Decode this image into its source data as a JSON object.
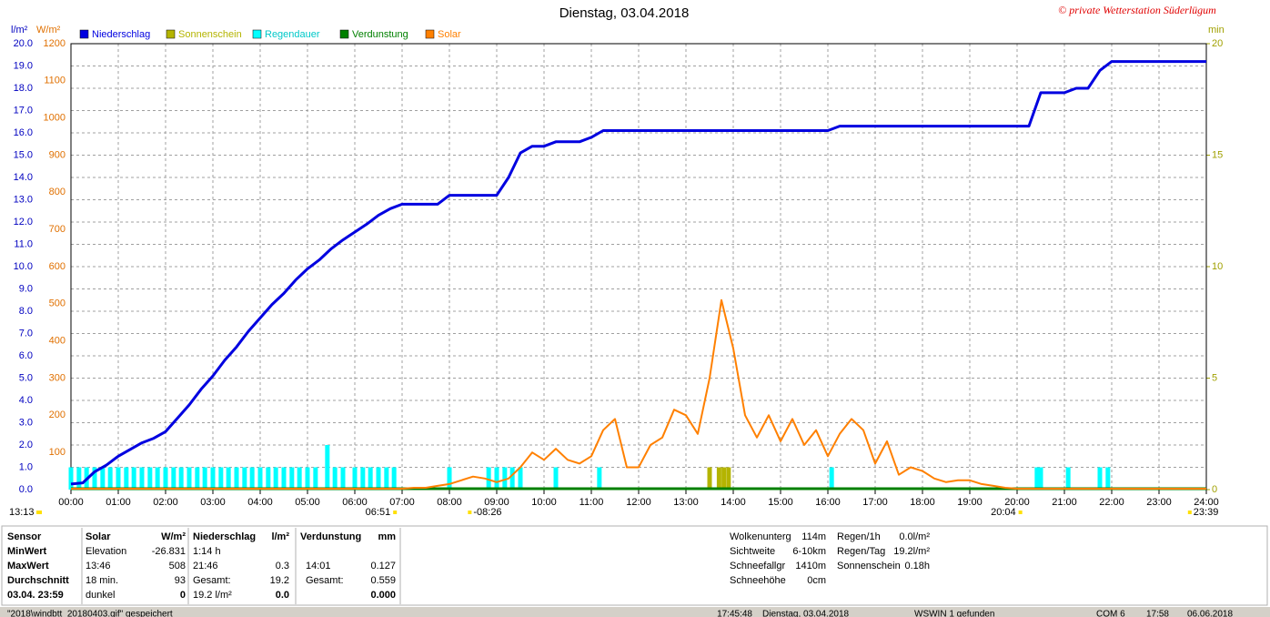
{
  "chart_data": {
    "type": "line",
    "title": "Dienstag, 03.04.2018",
    "credit": "© private Wetterstation Süderlügum",
    "y_unit": "l/m²",
    "y3_unit": "W/m²",
    "y2_unit": "min",
    "grid": true,
    "xlim": [
      0,
      24
    ],
    "xticks": [
      {
        "value": 0,
        "label": "00:00"
      },
      {
        "value": 1,
        "label": "01:00"
      },
      {
        "value": 2,
        "label": "02:00"
      },
      {
        "value": 3,
        "label": "03:00"
      },
      {
        "value": 4,
        "label": "04:00"
      },
      {
        "value": 5,
        "label": "05:00"
      },
      {
        "value": 6,
        "label": "06:00"
      },
      {
        "value": 7,
        "label": "07:00"
      },
      {
        "value": 8,
        "label": "08:00"
      },
      {
        "value": 9,
        "label": "09:00"
      },
      {
        "value": 10,
        "label": "10:00"
      },
      {
        "value": 11,
        "label": "11:00"
      },
      {
        "value": 12,
        "label": "12:00"
      },
      {
        "value": 13,
        "label": "13:00"
      },
      {
        "value": 14,
        "label": "14:00"
      },
      {
        "value": 15,
        "label": "15:00"
      },
      {
        "value": 16,
        "label": "16:00"
      },
      {
        "value": 17,
        "label": "17:00"
      },
      {
        "value": 18,
        "label": "18:00"
      },
      {
        "value": 19,
        "label": "19:00"
      },
      {
        "value": 20,
        "label": "20:00"
      },
      {
        "value": 21,
        "label": "21:00"
      },
      {
        "value": 22,
        "label": "22:00"
      },
      {
        "value": 23,
        "label": "23:00"
      },
      {
        "value": 24,
        "label": "24:00"
      }
    ],
    "ylim": [
      0,
      20
    ],
    "yticks": [
      {
        "value": 0,
        "label": "0.0"
      },
      {
        "value": 1,
        "label": "1.0"
      },
      {
        "value": 2,
        "label": "2.0"
      },
      {
        "value": 3,
        "label": "3.0"
      },
      {
        "value": 4,
        "label": "4.0"
      },
      {
        "value": 5,
        "label": "5.0"
      },
      {
        "value": 6,
        "label": "6.0"
      },
      {
        "value": 7,
        "label": "7.0"
      },
      {
        "value": 8,
        "label": "8.0"
      },
      {
        "value": 9,
        "label": "9.0"
      },
      {
        "value": 10,
        "label": "10.0"
      },
      {
        "value": 11,
        "label": "11.0"
      },
      {
        "value": 12,
        "label": "12.0"
      },
      {
        "value": 13,
        "label": "13.0"
      },
      {
        "value": 14,
        "label": "14.0"
      },
      {
        "value": 15,
        "label": "15.0"
      },
      {
        "value": 16,
        "label": "16.0"
      },
      {
        "value": 17,
        "label": "17.0"
      },
      {
        "value": 18,
        "label": "18.0"
      },
      {
        "value": 19,
        "label": "19.0"
      },
      {
        "value": 20,
        "label": "20.0"
      }
    ],
    "y3lim": [
      0,
      1200
    ],
    "y3ticks": [
      100,
      200,
      300,
      400,
      500,
      600,
      700,
      800,
      900,
      1000,
      1100,
      1200
    ],
    "y2lim": [
      0,
      20
    ],
    "y2ticks": [
      0,
      5,
      10,
      15,
      20
    ],
    "x": [
      0,
      0.25,
      0.5,
      0.75,
      1,
      1.25,
      1.5,
      1.75,
      2,
      2.25,
      2.5,
      2.75,
      3,
      3.25,
      3.5,
      3.75,
      4,
      4.25,
      4.5,
      4.75,
      5,
      5.25,
      5.5,
      5.75,
      6,
      6.25,
      6.5,
      6.75,
      7,
      7.25,
      7.5,
      7.75,
      8,
      8.25,
      8.5,
      8.75,
      9,
      9.25,
      9.5,
      9.75,
      10,
      10.25,
      10.5,
      10.75,
      11,
      11.25,
      11.5,
      11.75,
      12,
      12.25,
      12.5,
      12.75,
      13,
      13.25,
      13.5,
      13.75,
      14,
      14.25,
      14.5,
      14.75,
      15,
      15.25,
      15.5,
      15.75,
      16,
      16.25,
      16.5,
      16.75,
      17,
      17.25,
      17.5,
      17.75,
      18,
      18.25,
      18.5,
      18.75,
      19,
      19.25,
      19.5,
      19.75,
      20,
      20.25,
      20.5,
      20.75,
      21,
      21.25,
      21.5,
      21.75,
      22,
      22.25,
      22.5,
      22.75,
      23,
      23.25,
      23.5,
      23.75,
      24
    ],
    "series": [
      {
        "name": "Niederschlag",
        "color": "#0000e0",
        "kind": "line",
        "axis": "y",
        "values": [
          0.25,
          0.3,
          0.8,
          1.1,
          1.5,
          1.8,
          2.1,
          2.3,
          2.6,
          3.2,
          3.8,
          4.5,
          5.1,
          5.8,
          6.4,
          7.1,
          7.7,
          8.3,
          8.8,
          9.4,
          9.9,
          10.3,
          10.8,
          11.2,
          11.55,
          11.9,
          12.3,
          12.6,
          12.8,
          12.8,
          12.8,
          12.8,
          13.2,
          13.2,
          13.2,
          13.2,
          13.2,
          14.0,
          15.1,
          15.4,
          15.4,
          15.6,
          15.6,
          15.6,
          15.8,
          16.1,
          16.1,
          16.1,
          16.1,
          16.1,
          16.1,
          16.1,
          16.1,
          16.1,
          16.1,
          16.1,
          16.1,
          16.1,
          16.1,
          16.1,
          16.1,
          16.1,
          16.1,
          16.1,
          16.1,
          16.3,
          16.3,
          16.3,
          16.3,
          16.3,
          16.3,
          16.3,
          16.3,
          16.3,
          16.3,
          16.3,
          16.3,
          16.3,
          16.3,
          16.3,
          16.3,
          16.3,
          17.8,
          17.8,
          17.8,
          18.0,
          18.0,
          18.8,
          19.2,
          19.2,
          19.2,
          19.2,
          19.2,
          19.2,
          19.2,
          19.2,
          19.2
        ]
      },
      {
        "name": "Sonnenschein",
        "color": "#b4b400",
        "kind": "bar",
        "axis": "y2",
        "x": [
          13.5,
          13.7,
          13.8,
          13.9
        ],
        "values": [
          1,
          1,
          1,
          1
        ]
      },
      {
        "name": "Regendauer",
        "color": "#00ffff",
        "kind": "bar",
        "axis": "y2",
        "x": [
          0.0,
          0.17,
          0.33,
          0.5,
          0.67,
          0.83,
          1.0,
          1.17,
          1.33,
          1.5,
          1.67,
          1.83,
          2.0,
          2.17,
          2.33,
          2.5,
          2.67,
          2.83,
          3.0,
          3.17,
          3.33,
          3.5,
          3.67,
          3.83,
          4.0,
          4.17,
          4.33,
          4.5,
          4.67,
          4.83,
          5.0,
          5.17,
          5.42,
          5.58,
          5.75,
          6.0,
          6.17,
          6.33,
          6.5,
          6.67,
          6.83,
          8.0,
          8.83,
          9.0,
          9.17,
          9.33,
          9.5,
          10.25,
          11.17,
          16.08,
          20.42,
          20.5,
          21.08,
          21.75,
          21.92
        ],
        "values": [
          1,
          1,
          1,
          1,
          1,
          1,
          1,
          1,
          1,
          1,
          1,
          1,
          1,
          1,
          1,
          1,
          1,
          1,
          1,
          1,
          1,
          1,
          1,
          1,
          1,
          1,
          1,
          1,
          1,
          1,
          1,
          1,
          2,
          1,
          1,
          1,
          1,
          1,
          1,
          1,
          1,
          1,
          1,
          1,
          1,
          1,
          1,
          1,
          1,
          1,
          1,
          1,
          1,
          1,
          1
        ]
      },
      {
        "name": "Verdunstung",
        "color": "#008000",
        "kind": "line",
        "axis": "y",
        "x": [
          0,
          24
        ],
        "values": [
          0,
          0
        ]
      },
      {
        "name": "Solar",
        "color": "#ff8000",
        "kind": "line",
        "axis": "y3",
        "values": [
          0,
          0,
          0,
          0,
          0,
          0,
          0,
          0,
          0,
          0,
          0,
          0,
          0,
          0,
          0,
          0,
          0,
          0,
          0,
          0,
          0,
          0,
          0,
          0,
          0,
          0,
          0,
          0,
          0,
          5,
          5,
          10,
          15,
          25,
          35,
          30,
          20,
          30,
          60,
          100,
          80,
          110,
          80,
          70,
          90,
          160,
          190,
          60,
          60,
          120,
          140,
          215,
          200,
          150,
          300,
          510,
          380,
          200,
          140,
          200,
          130,
          190,
          120,
          160,
          90,
          150,
          190,
          160,
          70,
          130,
          40,
          60,
          50,
          30,
          20,
          25,
          25,
          15,
          10,
          5,
          0,
          0,
          0,
          0,
          0,
          0,
          0,
          0,
          0,
          0,
          0,
          0,
          0,
          0,
          0,
          0,
          0
        ]
      }
    ],
    "daylight": "13:13",
    "sun_events": [
      {
        "value": 6.85,
        "label": "06:51"
      },
      {
        "value": 8.43,
        "label": "-08:26"
      },
      {
        "value": 20.07,
        "label": "20:04"
      },
      {
        "value": 23.65,
        "label": "23:39"
      }
    ]
  },
  "stats": {
    "row_labels": [
      "Sensor",
      "MinWert",
      "MaxWert",
      "Durchschnitt",
      "03.04. 23:59"
    ],
    "columns": [
      {
        "title": "Solar",
        "unit": "W/m²",
        "rows": [
          [
            "Elevation",
            "-26.831"
          ],
          [
            "13:46",
            "508"
          ],
          [
            "18 min.",
            "93"
          ],
          [
            "dunkel",
            "0"
          ]
        ]
      },
      {
        "title": "Niederschlag",
        "unit": "l/m²",
        "rows": [
          [
            "1:14 h",
            null
          ],
          [
            "21:46",
            "0.3"
          ],
          [
            "Gesamt:",
            "19.2"
          ],
          [
            "19.2 l/m²",
            "0.0"
          ]
        ]
      },
      {
        "title": "Verdunstung",
        "unit": "mm",
        "rows": [
          [
            null,
            null
          ],
          [
            "14:01",
            "0.127"
          ],
          [
            "Gesamt:",
            "0.559"
          ],
          [
            null,
            "0.000"
          ]
        ]
      }
    ],
    "extra_left": [
      [
        "Wolkenunterg",
        "114m"
      ],
      [
        "Sichtweite",
        "6-10km"
      ],
      [
        "Schneefallgr",
        "1410m"
      ],
      [
        "Schneehöhe",
        "0cm"
      ]
    ],
    "extra_right": [
      [
        "Regen/1h",
        "0.0l/m²"
      ],
      [
        "Regen/Tag",
        "19.2l/m²"
      ],
      [
        "Sonnenschein",
        "0.18h"
      ]
    ]
  },
  "status_bar": [
    "\"2018\\windbtt_20180403.gif\" gespeichert",
    "17:45:48",
    "Dienstag, 03.04.2018",
    "WSWIN 1 gefunden",
    "COM 6",
    "17:58",
    "06.06.2018"
  ]
}
